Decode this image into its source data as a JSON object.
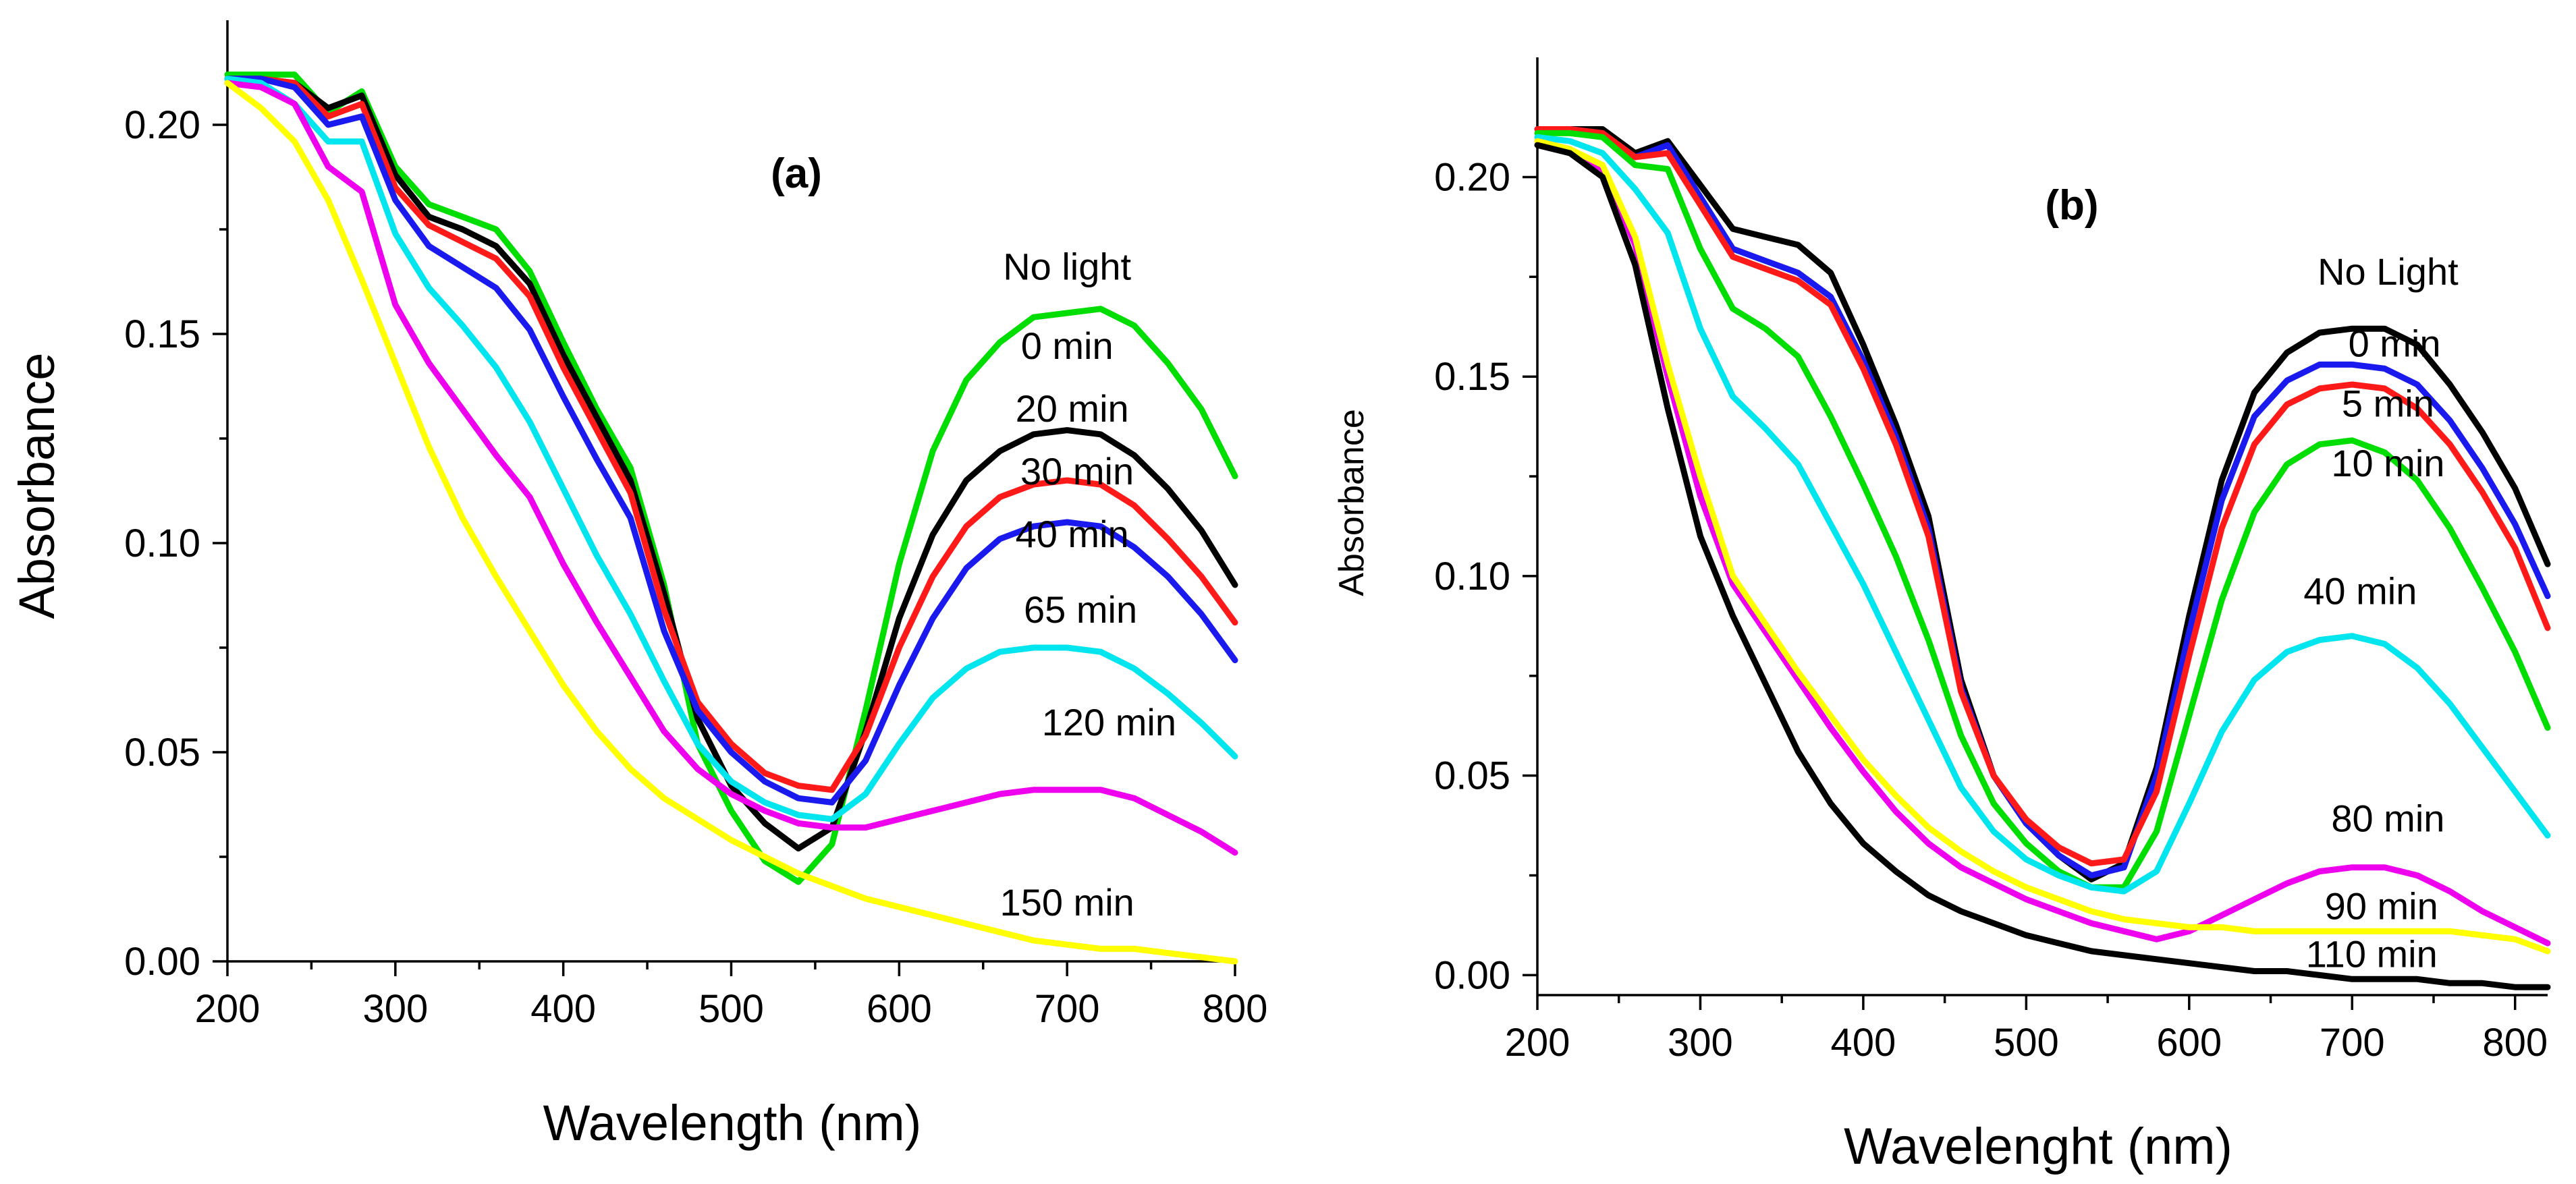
{
  "chart_data": [
    {
      "type": "line",
      "title": "(a)",
      "xlabel": "Wavelength (nm)",
      "ylabel": "Absorbance",
      "xlim": [
        200,
        800
      ],
      "ylim": [
        0,
        0.225
      ],
      "xticks": [
        200,
        300,
        400,
        500,
        600,
        700,
        800
      ],
      "yticks": [
        0.0,
        0.05,
        0.1,
        0.15,
        0.2
      ],
      "xtick_labels": [
        "200",
        "300",
        "400",
        "500",
        "600",
        "700",
        "800"
      ],
      "ytick_labels": [
        "0.00",
        "0.05",
        "0.10",
        "0.15",
        "0.20"
      ],
      "x": [
        200,
        220,
        240,
        260,
        280,
        300,
        320,
        340,
        360,
        380,
        400,
        420,
        440,
        460,
        480,
        500,
        520,
        540,
        560,
        580,
        600,
        620,
        640,
        660,
        680,
        700,
        720,
        740,
        760,
        780,
        800
      ],
      "series": [
        {
          "name": "No light",
          "color": "#00dd00",
          "label_at": [
            700,
            0.163
          ],
          "values": [
            0.212,
            0.212,
            0.212,
            0.203,
            0.208,
            0.19,
            0.181,
            0.178,
            0.175,
            0.165,
            0.148,
            0.132,
            0.118,
            0.09,
            0.052,
            0.036,
            0.024,
            0.019,
            0.028,
            0.06,
            0.095,
            0.122,
            0.139,
            0.148,
            0.154,
            0.155,
            0.156,
            0.152,
            0.143,
            0.132,
            0.116
          ]
        },
        {
          "name": "0 min",
          "color": "#000000",
          "label_at": [
            700,
            0.144
          ],
          "values": [
            0.211,
            0.211,
            0.21,
            0.204,
            0.207,
            0.188,
            0.178,
            0.175,
            0.171,
            0.162,
            0.145,
            0.13,
            0.115,
            0.088,
            0.058,
            0.042,
            0.033,
            0.027,
            0.032,
            0.055,
            0.082,
            0.102,
            0.115,
            0.122,
            0.126,
            0.127,
            0.126,
            0.121,
            0.113,
            0.103,
            0.09
          ]
        },
        {
          "name": "20 min",
          "color": "#ff1a1a",
          "label_at": [
            703,
            0.129
          ],
          "values": [
            0.211,
            0.211,
            0.21,
            0.202,
            0.205,
            0.185,
            0.176,
            0.172,
            0.168,
            0.159,
            0.142,
            0.127,
            0.112,
            0.084,
            0.062,
            0.052,
            0.045,
            0.042,
            0.041,
            0.054,
            0.075,
            0.092,
            0.104,
            0.111,
            0.114,
            0.115,
            0.114,
            0.109,
            0.101,
            0.092,
            0.081
          ]
        },
        {
          "name": "30 min",
          "color": "#1a1aee",
          "label_at": [
            706,
            0.114
          ],
          "values": [
            0.211,
            0.211,
            0.209,
            0.2,
            0.202,
            0.182,
            0.171,
            0.166,
            0.161,
            0.151,
            0.135,
            0.12,
            0.106,
            0.079,
            0.06,
            0.05,
            0.043,
            0.039,
            0.038,
            0.048,
            0.066,
            0.082,
            0.094,
            0.101,
            0.104,
            0.105,
            0.104,
            0.099,
            0.092,
            0.083,
            0.072
          ]
        },
        {
          "name": "40 min",
          "color": "#00e5ee",
          "label_at": [
            703,
            0.099
          ],
          "values": [
            0.211,
            0.21,
            0.205,
            0.196,
            0.196,
            0.174,
            0.161,
            0.152,
            0.142,
            0.129,
            0.113,
            0.097,
            0.083,
            0.067,
            0.052,
            0.043,
            0.038,
            0.035,
            0.034,
            0.04,
            0.052,
            0.063,
            0.07,
            0.074,
            0.075,
            0.075,
            0.074,
            0.07,
            0.064,
            0.057,
            0.049
          ]
        },
        {
          "name": "65 min",
          "color": "#ee00ee",
          "label_at": [
            708,
            0.081
          ],
          "values": [
            0.21,
            0.209,
            0.205,
            0.19,
            0.184,
            0.157,
            0.143,
            0.132,
            0.121,
            0.111,
            0.095,
            0.081,
            0.068,
            0.055,
            0.046,
            0.04,
            0.036,
            0.033,
            0.032,
            0.032,
            0.034,
            0.036,
            0.038,
            0.04,
            0.041,
            0.041,
            0.041,
            0.039,
            0.035,
            0.031,
            0.026
          ]
        },
        {
          "name": "120 min",
          "color": "#ffff00",
          "label_at": [
            725,
            0.054
          ],
          "values": [
            0.21,
            0.204,
            0.196,
            0.182,
            0.163,
            0.143,
            0.123,
            0.106,
            0.092,
            0.079,
            0.066,
            0.055,
            0.046,
            0.039,
            0.034,
            0.029,
            0.025,
            0.021,
            0.018,
            0.015,
            0.013,
            0.011,
            0.009,
            0.007,
            0.005,
            0.004,
            0.003,
            0.003,
            0.002,
            0.001,
            0.0
          ]
        }
      ],
      "extra_labels": [
        {
          "text": "150 min",
          "at": [
            700,
            0.011
          ]
        }
      ]
    },
    {
      "type": "line",
      "title": "(b)",
      "xlabel": "Wavelenght (nm)",
      "ylabel": "Absorbance",
      "xlim": [
        200,
        820
      ],
      "ylim": [
        -0.005,
        0.23
      ],
      "xticks": [
        200,
        300,
        400,
        500,
        600,
        700,
        800
      ],
      "yticks": [
        0.0,
        0.05,
        0.1,
        0.15,
        0.2
      ],
      "xtick_labels": [
        "200",
        "300",
        "400",
        "500",
        "600",
        "700",
        "800"
      ],
      "ytick_labels": [
        "0.00",
        "0.05",
        "0.10",
        "0.15",
        "0.20"
      ],
      "x": [
        200,
        220,
        240,
        260,
        280,
        300,
        320,
        340,
        360,
        380,
        400,
        420,
        440,
        460,
        480,
        500,
        520,
        540,
        560,
        580,
        600,
        620,
        640,
        660,
        680,
        700,
        720,
        740,
        760,
        780,
        800,
        820
      ],
      "series": [
        {
          "name": "No Light",
          "color": "#000000",
          "label_at": [
            722,
            0.173
          ],
          "values": [
            0.212,
            0.212,
            0.212,
            0.206,
            0.209,
            0.198,
            0.187,
            0.185,
            0.183,
            0.176,
            0.158,
            0.138,
            0.115,
            0.074,
            0.05,
            0.038,
            0.03,
            0.024,
            0.028,
            0.052,
            0.09,
            0.124,
            0.146,
            0.156,
            0.161,
            0.162,
            0.162,
            0.158,
            0.148,
            0.136,
            0.122,
            0.103
          ]
        },
        {
          "name": "0 min",
          "color": "#1a1aee",
          "label_at": [
            726,
            0.155
          ],
          "values": [
            0.212,
            0.212,
            0.211,
            0.205,
            0.208,
            0.195,
            0.182,
            0.179,
            0.176,
            0.17,
            0.154,
            0.135,
            0.112,
            0.072,
            0.05,
            0.038,
            0.03,
            0.025,
            0.027,
            0.05,
            0.086,
            0.119,
            0.14,
            0.149,
            0.153,
            0.153,
            0.152,
            0.148,
            0.139,
            0.127,
            0.113,
            0.095
          ]
        },
        {
          "name": "5 min",
          "color": "#ff1a1a",
          "label_at": [
            722,
            0.14
          ],
          "values": [
            0.212,
            0.212,
            0.211,
            0.205,
            0.206,
            0.193,
            0.18,
            0.177,
            0.174,
            0.168,
            0.152,
            0.133,
            0.11,
            0.071,
            0.05,
            0.039,
            0.032,
            0.028,
            0.029,
            0.046,
            0.08,
            0.112,
            0.133,
            0.143,
            0.147,
            0.148,
            0.147,
            0.142,
            0.133,
            0.121,
            0.107,
            0.087
          ]
        },
        {
          "name": "10 min",
          "color": "#00dd00",
          "label_at": [
            722,
            0.125
          ],
          "values": [
            0.211,
            0.211,
            0.21,
            0.203,
            0.202,
            0.182,
            0.167,
            0.162,
            0.155,
            0.14,
            0.123,
            0.105,
            0.084,
            0.06,
            0.043,
            0.033,
            0.026,
            0.022,
            0.022,
            0.036,
            0.065,
            0.094,
            0.116,
            0.128,
            0.133,
            0.134,
            0.131,
            0.124,
            0.112,
            0.097,
            0.081,
            0.062
          ]
        },
        {
          "name": "40 min",
          "color": "#00e5ee",
          "label_at": [
            705,
            0.093
          ],
          "values": [
            0.21,
            0.209,
            0.206,
            0.197,
            0.186,
            0.162,
            0.145,
            0.137,
            0.128,
            0.113,
            0.098,
            0.081,
            0.064,
            0.047,
            0.036,
            0.029,
            0.025,
            0.022,
            0.021,
            0.026,
            0.043,
            0.061,
            0.074,
            0.081,
            0.084,
            0.085,
            0.083,
            0.077,
            0.068,
            0.057,
            0.046,
            0.035
          ]
        },
        {
          "name": "80 min",
          "color": "#ee00ee",
          "label_at": [
            722,
            0.036
          ],
          "values": [
            0.209,
            0.207,
            0.202,
            0.183,
            0.15,
            0.12,
            0.098,
            0.086,
            0.074,
            0.062,
            0.051,
            0.041,
            0.033,
            0.027,
            0.023,
            0.019,
            0.016,
            0.013,
            0.011,
            0.009,
            0.011,
            0.015,
            0.019,
            0.023,
            0.026,
            0.027,
            0.027,
            0.025,
            0.021,
            0.016,
            0.012,
            0.008
          ]
        },
        {
          "name": "90 min",
          "color": "#ffff00",
          "label_at": [
            718,
            0.014
          ],
          "values": [
            0.209,
            0.207,
            0.203,
            0.185,
            0.153,
            0.125,
            0.1,
            0.088,
            0.076,
            0.065,
            0.054,
            0.045,
            0.037,
            0.031,
            0.026,
            0.022,
            0.019,
            0.016,
            0.014,
            0.013,
            0.012,
            0.012,
            0.011,
            0.011,
            0.011,
            0.011,
            0.011,
            0.011,
            0.011,
            0.01,
            0.009,
            0.006
          ]
        },
        {
          "name": "110 min",
          "color": "#000000",
          "label_at": [
            712,
            0.002
          ],
          "values": [
            0.208,
            0.206,
            0.2,
            0.178,
            0.142,
            0.11,
            0.09,
            0.073,
            0.056,
            0.043,
            0.033,
            0.026,
            0.02,
            0.016,
            0.013,
            0.01,
            0.008,
            0.006,
            0.005,
            0.004,
            0.003,
            0.002,
            0.001,
            0.001,
            0.0,
            -0.001,
            -0.001,
            -0.001,
            -0.002,
            -0.002,
            -0.003,
            -0.003
          ]
        }
      ],
      "extra_labels": []
    }
  ]
}
